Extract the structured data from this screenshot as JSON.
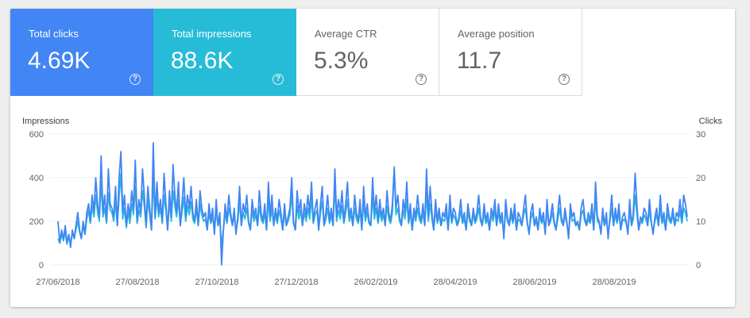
{
  "metrics": {
    "clicks": {
      "label": "Total clicks",
      "value": "4.69K",
      "help": "?"
    },
    "impressions": {
      "label": "Total impressions",
      "value": "88.6K",
      "help": "?"
    },
    "ctr": {
      "label": "Average CTR",
      "value": "5.3%",
      "help": "?"
    },
    "position": {
      "label": "Average position",
      "value": "11.7",
      "help": "?"
    }
  },
  "colors": {
    "clicks": "#4285f4",
    "impressions": "#26bcd7",
    "grid": "#eceff1"
  },
  "chart_data": {
    "type": "line",
    "left_axis_label": "Impressions",
    "right_axis_label": "Clicks",
    "left_ylim": [
      0,
      600
    ],
    "right_ylim": [
      0,
      30
    ],
    "left_ticks": [
      "0",
      "200",
      "400",
      "600"
    ],
    "right_ticks": [
      "0",
      "10",
      "20",
      "30"
    ],
    "x_ticks": [
      "27/06/2018",
      "27/08/2018",
      "27/10/2018",
      "27/12/2018",
      "26/02/2019",
      "28/04/2019",
      "28/06/2019",
      "28/08/2019"
    ],
    "grid": true,
    "series": [
      {
        "name": "Total clicks",
        "axis": "right",
        "color": "#4285f4",
        "values": [
          10,
          5,
          8,
          6,
          9,
          5,
          7,
          4,
          8,
          6,
          9,
          12,
          8,
          6,
          10,
          7,
          12,
          14,
          10,
          16,
          12,
          20,
          14,
          11,
          25,
          12,
          16,
          10,
          22,
          14,
          13,
          11,
          18,
          9,
          20,
          26,
          12,
          16,
          9,
          14,
          11,
          17,
          13,
          24,
          10,
          15,
          12,
          22,
          16,
          9,
          18,
          13,
          8,
          28,
          11,
          19,
          12,
          15,
          10,
          21,
          14,
          8,
          17,
          11,
          23,
          16,
          12,
          19,
          9,
          14,
          20,
          11,
          16,
          13,
          18,
          12,
          10,
          15,
          9,
          17,
          13,
          11,
          12,
          8,
          14,
          10,
          13,
          7,
          15,
          9,
          12,
          0,
          8,
          14,
          10,
          16,
          12,
          9,
          13,
          7,
          11,
          18,
          9,
          14,
          12,
          16,
          10,
          8,
          15,
          11,
          13,
          9,
          17,
          12,
          10,
          14,
          8,
          19,
          11,
          16,
          9,
          13,
          10,
          15,
          12,
          8,
          14,
          9,
          11,
          13,
          20,
          10,
          8,
          17,
          12,
          15,
          9,
          14,
          11,
          16,
          12,
          19,
          10,
          13,
          15,
          8,
          14,
          18,
          9,
          12,
          16,
          10,
          13,
          9,
          22,
          11,
          15,
          12,
          17,
          10,
          14,
          19,
          11,
          13,
          9,
          16,
          12,
          10,
          15,
          8,
          18,
          11,
          14,
          10,
          9,
          20,
          12,
          16,
          10,
          15,
          11,
          13,
          9,
          17,
          12,
          10,
          14,
          22,
          13,
          16,
          11,
          9,
          15,
          12,
          19,
          10,
          14,
          8,
          13,
          11,
          16,
          12,
          10,
          14,
          9,
          22,
          11,
          18,
          12,
          8,
          15,
          10,
          13,
          9,
          12,
          11,
          14,
          8,
          16,
          10,
          13,
          12,
          9,
          11,
          15,
          10,
          12,
          8,
          14,
          11,
          9,
          13,
          10,
          12,
          16,
          11,
          9,
          14,
          10,
          12,
          8,
          13,
          11,
          15,
          9,
          14,
          10,
          12,
          6,
          15,
          11,
          9,
          13,
          10,
          14,
          8,
          12,
          11,
          9,
          13,
          16,
          10,
          7,
          12,
          14,
          9,
          11,
          8,
          13,
          10,
          12,
          7,
          15,
          9,
          11,
          14,
          10,
          8,
          12,
          16,
          11,
          9,
          13,
          10,
          6,
          14,
          11,
          12,
          9,
          10,
          8,
          13,
          15,
          11,
          9,
          12,
          10,
          14,
          8,
          19,
          11,
          10,
          7,
          13,
          9,
          12,
          6,
          11,
          16,
          9,
          13,
          10,
          14,
          8,
          11,
          12,
          10,
          7,
          15,
          9,
          12,
          21,
          14,
          8,
          11,
          10,
          13,
          12,
          9,
          15,
          10,
          7,
          11,
          13,
          9,
          16,
          10,
          12,
          8,
          14,
          11,
          10,
          13,
          9,
          12,
          11,
          15,
          10,
          16,
          14,
          11
        ],
        "_": "clicks"
      },
      {
        "name": "Total impressions",
        "axis": "left",
        "color": "#26bcd7",
        "values": [
          120,
          100,
          140,
          110,
          150,
          95,
          130,
          100,
          145,
          120,
          160,
          200,
          150,
          120,
          180,
          140,
          210,
          250,
          190,
          270,
          220,
          320,
          240,
          200,
          380,
          220,
          260,
          190,
          330,
          250,
          240,
          200,
          290,
          180,
          310,
          420,
          210,
          260,
          170,
          240,
          190,
          280,
          230,
          360,
          190,
          250,
          220,
          340,
          270,
          170,
          300,
          230,
          160,
          400,
          210,
          310,
          220,
          260,
          190,
          320,
          250,
          160,
          290,
          200,
          340,
          270,
          220,
          300,
          180,
          240,
          310,
          200,
          270,
          230,
          290,
          210,
          190,
          260,
          180,
          280,
          230,
          200,
          210,
          160,
          240,
          190,
          220,
          150,
          250,
          180,
          210,
          90,
          160,
          240,
          190,
          260,
          220,
          180,
          230,
          150,
          200,
          290,
          180,
          240,
          210,
          260,
          190,
          160,
          250,
          200,
          230,
          180,
          270,
          210,
          190,
          240,
          160,
          300,
          200,
          260,
          180,
          230,
          190,
          250,
          210,
          160,
          240,
          180,
          200,
          230,
          330,
          190,
          160,
          270,
          210,
          250,
          180,
          240,
          200,
          260,
          210,
          310,
          190,
          230,
          250,
          160,
          240,
          290,
          180,
          210,
          260,
          190,
          230,
          180,
          360,
          200,
          250,
          210,
          270,
          190,
          240,
          300,
          200,
          230,
          180,
          260,
          210,
          190,
          250,
          160,
          290,
          200,
          240,
          190,
          180,
          310,
          210,
          260,
          190,
          250,
          200,
          230,
          180,
          270,
          210,
          190,
          240,
          450,
          230,
          260,
          200,
          180,
          250,
          210,
          300,
          190,
          240,
          160,
          230,
          200,
          260,
          210,
          190,
          240,
          180,
          330,
          200,
          280,
          210,
          160,
          250,
          190,
          230,
          180,
          210,
          200,
          240,
          160,
          260,
          190,
          230,
          210,
          180,
          200,
          250,
          190,
          210,
          160,
          240,
          200,
          180,
          230,
          190,
          210,
          260,
          200,
          180,
          240,
          190,
          210,
          160,
          230,
          200,
          250,
          180,
          240,
          190,
          210,
          140,
          250,
          200,
          180,
          230,
          190,
          240,
          160,
          210,
          200,
          180,
          230,
          260,
          190,
          150,
          210,
          240,
          180,
          200,
          160,
          230,
          190,
          210,
          150,
          250,
          180,
          200,
          240,
          190,
          160,
          210,
          260,
          200,
          180,
          230,
          190,
          140,
          240,
          200,
          210,
          180,
          190,
          160,
          230,
          250,
          200,
          180,
          210,
          190,
          240,
          160,
          300,
          200,
          190,
          150,
          230,
          180,
          210,
          140,
          200,
          260,
          180,
          230,
          190,
          240,
          160,
          200,
          210,
          190,
          150,
          250,
          180,
          210,
          320,
          240,
          160,
          200,
          190,
          230,
          210,
          180,
          250,
          190,
          150,
          200,
          230,
          180,
          260,
          190,
          210,
          160,
          240,
          200,
          190,
          230,
          180,
          210,
          200,
          250,
          190,
          260,
          240,
          200
        ]
      }
    ]
  }
}
